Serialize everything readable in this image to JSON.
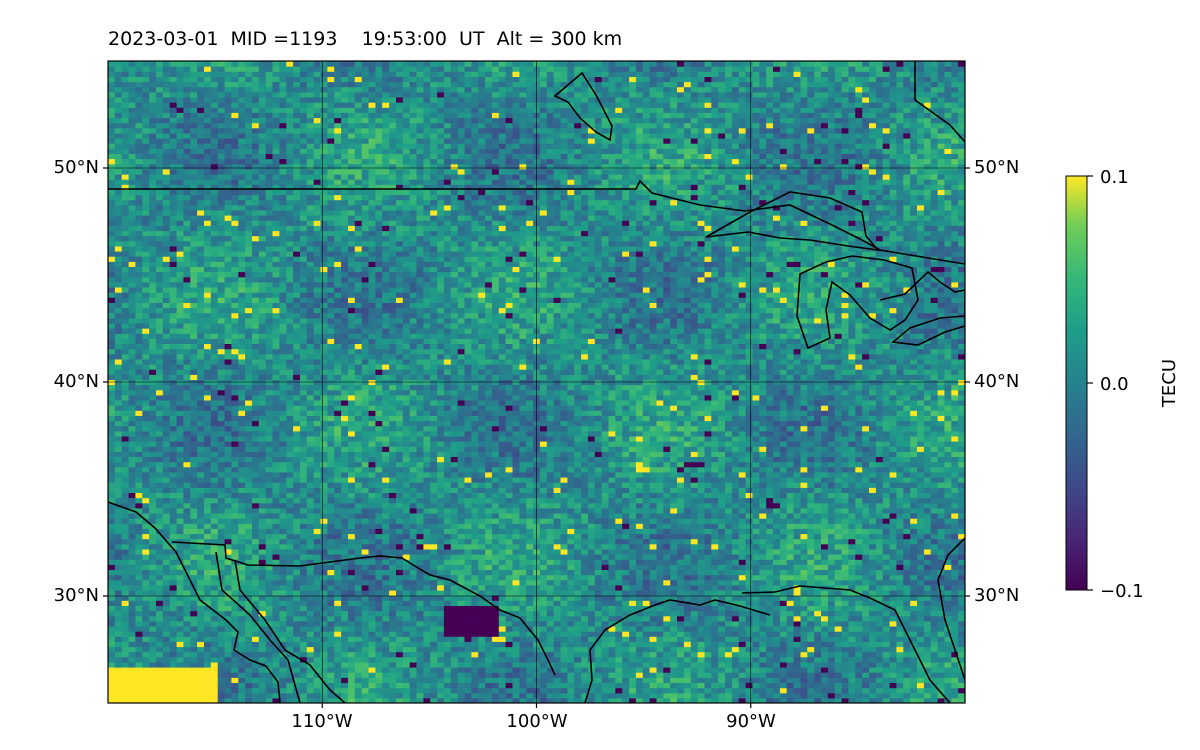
{
  "title": "2023-03-01  MID =1193    19:53:00  UT  Alt = 300 km",
  "map": {
    "lon_range": [
      -120,
      -80
    ],
    "lat_range": [
      25,
      55
    ],
    "lat_ticks": [
      {
        "value": 30,
        "label": "30°N"
      },
      {
        "value": 40,
        "label": "40°N"
      },
      {
        "value": 50,
        "label": "50°N"
      }
    ],
    "lon_ticks": [
      {
        "value": -110,
        "label": "110°W"
      },
      {
        "value": -100,
        "label": "100°W"
      },
      {
        "value": -90,
        "label": "90°W"
      }
    ],
    "gridlines": true,
    "coastlines": true
  },
  "colorbar": {
    "label": "TECU",
    "colormap": "viridis",
    "range": [
      -0.1,
      0.1
    ],
    "ticks": [
      {
        "value": 0.1,
        "label": "0.1"
      },
      {
        "value": 0.0,
        "label": "0.0"
      },
      {
        "value": -0.1,
        "label": "−0.1"
      }
    ]
  },
  "chart_data": {
    "type": "heatmap",
    "title": "2023-03-01  MID =1193    19:53:00  UT  Alt = 300 km",
    "x_label": "",
    "y_label": "",
    "xlim": [
      -120,
      -80
    ],
    "ylim": [
      25,
      55
    ],
    "value_label": "TECU",
    "zlim": [
      -0.1,
      0.1
    ],
    "note": "",
    "features": [
      {
        "lon_range": [
          -120,
          -115
        ],
        "lat_range": [
          25,
          26.5
        ],
        "value": 0.1
      },
      {
        "lon_range": [
          -104.5,
          -102
        ],
        "lat_range": [
          28,
          29.5
        ],
        "value": -0.1
      }
    ]
  }
}
